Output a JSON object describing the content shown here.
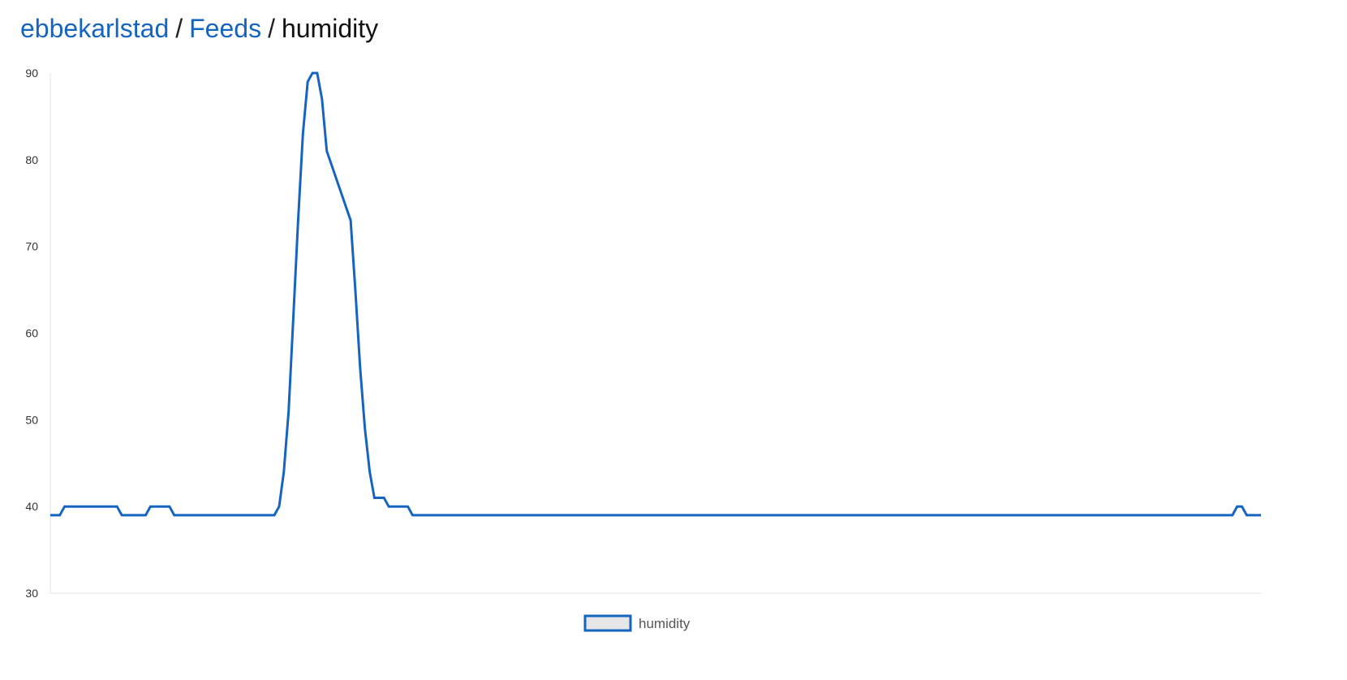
{
  "breadcrumb": {
    "user": "ebbekarlstad",
    "section": "Feeds",
    "separator": "/",
    "current": "humidity"
  },
  "colors": {
    "line": "#1565c0",
    "legend_fill": "#e6e6e6",
    "axis": "#e3e3e3",
    "link": "#1565c0"
  },
  "chart_data": {
    "type": "line",
    "title": "",
    "xlabel": "",
    "ylabel": "",
    "ylim": [
      30,
      90
    ],
    "yticks": [
      90,
      80,
      70,
      60,
      50,
      40,
      30
    ],
    "xlim": [
      0,
      254
    ],
    "grid": false,
    "legend_position": "bottom-center",
    "series": [
      {
        "name": "humidity",
        "color": "#1565c0",
        "points": [
          [
            0,
            39
          ],
          [
            2,
            39
          ],
          [
            3,
            40
          ],
          [
            14,
            40
          ],
          [
            15,
            39
          ],
          [
            20,
            39
          ],
          [
            21,
            40
          ],
          [
            25,
            40
          ],
          [
            26,
            39
          ],
          [
            47,
            39
          ],
          [
            48,
            40
          ],
          [
            49,
            44
          ],
          [
            50,
            51
          ],
          [
            51,
            62
          ],
          [
            52,
            73
          ],
          [
            53,
            83
          ],
          [
            54,
            89
          ],
          [
            55,
            90
          ],
          [
            56,
            90
          ],
          [
            57,
            87
          ],
          [
            58,
            81
          ],
          [
            63,
            73
          ],
          [
            64,
            65
          ],
          [
            65,
            56
          ],
          [
            66,
            49
          ],
          [
            67,
            44
          ],
          [
            68,
            41
          ],
          [
            69,
            41
          ],
          [
            70,
            41
          ],
          [
            71,
            40
          ],
          [
            75,
            40
          ],
          [
            76,
            39
          ],
          [
            248,
            39
          ],
          [
            249,
            40
          ],
          [
            250,
            40
          ],
          [
            251,
            39
          ],
          [
            254,
            39
          ]
        ]
      }
    ]
  }
}
